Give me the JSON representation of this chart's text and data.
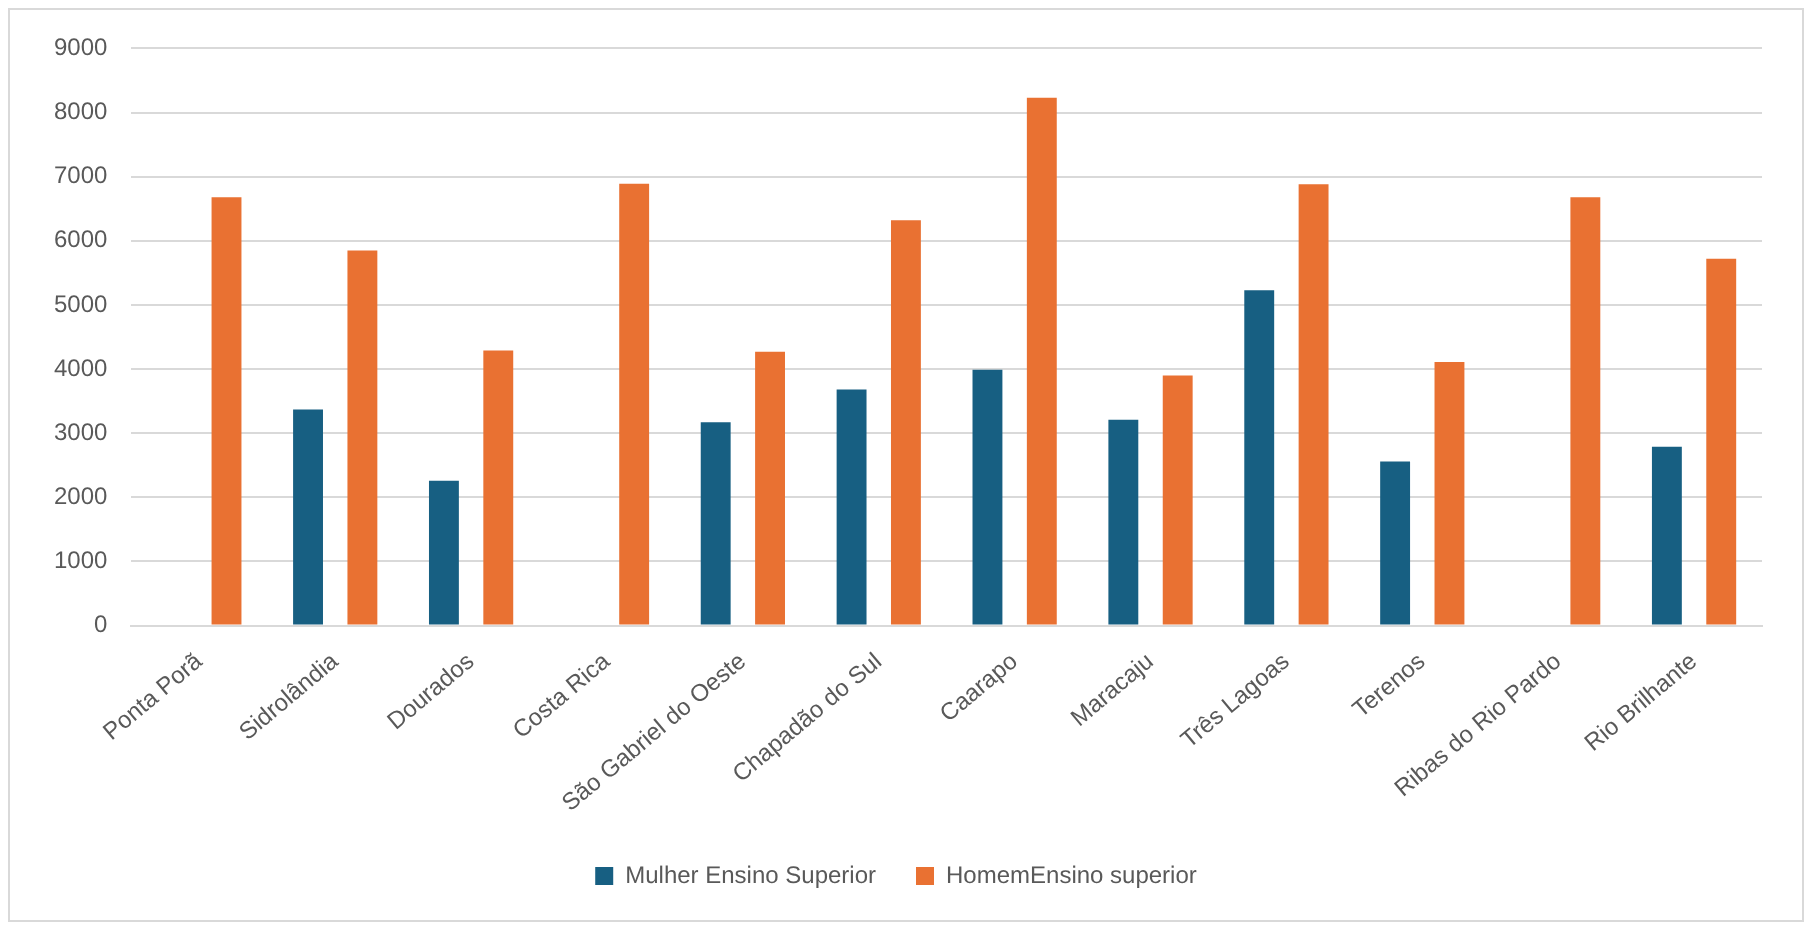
{
  "chart_data": {
    "type": "bar",
    "categories": [
      "Ponta Porã",
      "Sidrolândia",
      "Dourados",
      "Costa Rica",
      "São Gabriel do Oeste",
      "Chapadão do Sul",
      "Caarapo",
      "Maracaju",
      "Três Lagoas",
      "Terenos",
      "Ribas do Rio Pardo",
      "Rio Brilhante"
    ],
    "series": [
      {
        "name": "Mulher Ensino Superior",
        "color": "#175f82",
        "values": [
          null,
          3370,
          2260,
          null,
          3170,
          3680,
          3990,
          3210,
          5230,
          2560,
          null,
          2790
        ]
      },
      {
        "name": "HomemEnsino superior",
        "color": "#e97132",
        "values": [
          6680,
          5850,
          4290,
          6890,
          4270,
          6320,
          8230,
          3900,
          6880,
          4110,
          6680,
          5720
        ]
      }
    ],
    "ylim": [
      0,
      9000
    ],
    "yticks": [
      0,
      1000,
      2000,
      3000,
      4000,
      5000,
      6000,
      7000,
      8000,
      9000
    ],
    "grid": "y",
    "legend": "bottom"
  }
}
